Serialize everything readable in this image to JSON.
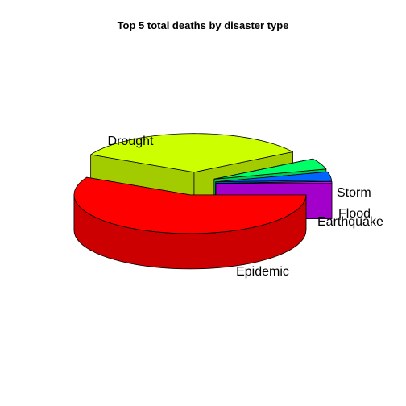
{
  "chart_data": {
    "type": "pie",
    "style": "3d-exploded",
    "title": "Top 5 total deaths by disaster type",
    "slices": [
      {
        "label": "Drought",
        "value": 0.575,
        "color": "#FF0000",
        "side_color": "#CC0000"
      },
      {
        "label": "Epidemic",
        "value": 0.337,
        "color": "#CCFF00",
        "side_color": "#A3CC00"
      },
      {
        "label": "Earthquake",
        "value": 0.046,
        "color": "#00FF66",
        "side_color": "#00CC52"
      },
      {
        "label": "Flood",
        "value": 0.034,
        "color": "#0066FF",
        "side_color": "#0052CC"
      },
      {
        "label": "Storm",
        "value": 0.008,
        "color": "#CC00FF",
        "side_color": "#A300CC"
      }
    ]
  }
}
